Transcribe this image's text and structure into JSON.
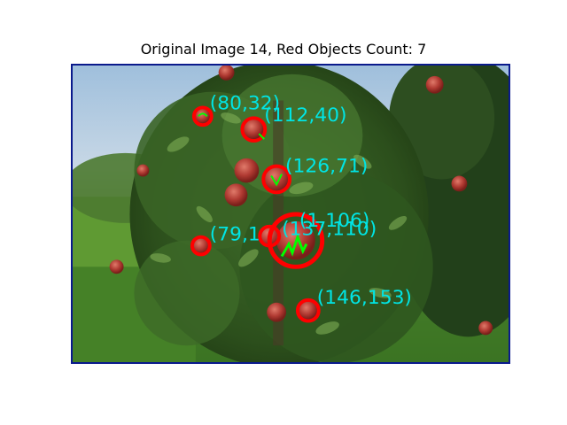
{
  "figure": {
    "title": "Original Image 14, Red Objects Count: 7"
  },
  "image": {
    "subject": "apple tree with red apples in an orchard"
  },
  "detections": [
    {
      "label": "(80,32)"
    },
    {
      "label": "(112,40)"
    },
    {
      "label": "(126,71)"
    },
    {
      "label": "(79,1"
    },
    {
      "label": "(137,110)"
    },
    {
      "label": "(1,106)"
    },
    {
      "label": "(146,153)"
    }
  ],
  "colors": {
    "circle": "#ff0000",
    "contour": "#00ff00",
    "label": "#00e5e5",
    "frame": "#0a1a8c"
  }
}
